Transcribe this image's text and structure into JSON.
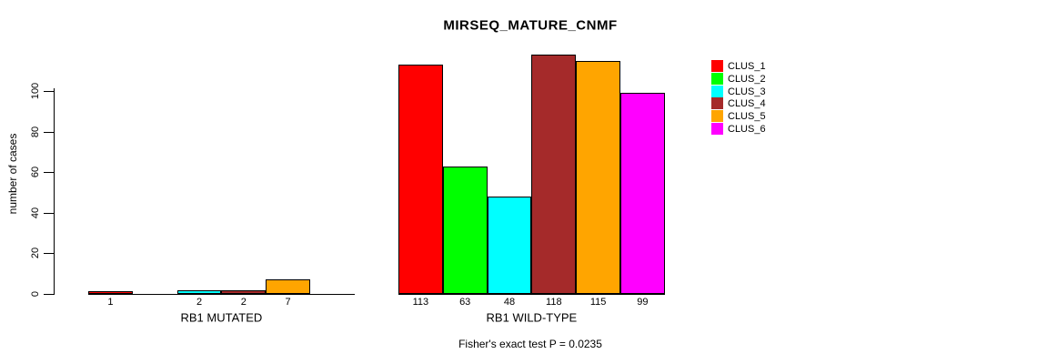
{
  "chart_data": {
    "type": "bar",
    "title": "MIRSEQ_MATURE_CNMF",
    "ylabel": "number of cases",
    "xlabel": "",
    "ylim": [
      0,
      120
    ],
    "yticks": [
      0,
      20,
      40,
      60,
      80,
      100
    ],
    "grid": false,
    "legend_position": "right",
    "series_names": [
      "CLUS_1",
      "CLUS_2",
      "CLUS_3",
      "CLUS_4",
      "CLUS_5",
      "CLUS_6"
    ],
    "series_colors": [
      "#FF0000",
      "#00FF00",
      "#00FFFF",
      "#A52A2A",
      "#FFA500",
      "#FF00FF"
    ],
    "groups": [
      {
        "label": "RB1 MUTATED",
        "values": [
          1,
          0,
          2,
          2,
          7,
          0
        ]
      },
      {
        "label": "RB1 WILD-TYPE",
        "values": [
          113,
          63,
          48,
          118,
          115,
          99
        ]
      }
    ],
    "bar_value_labels_shown": true,
    "annotation": "Fisher's exact test P = 0.0235"
  }
}
